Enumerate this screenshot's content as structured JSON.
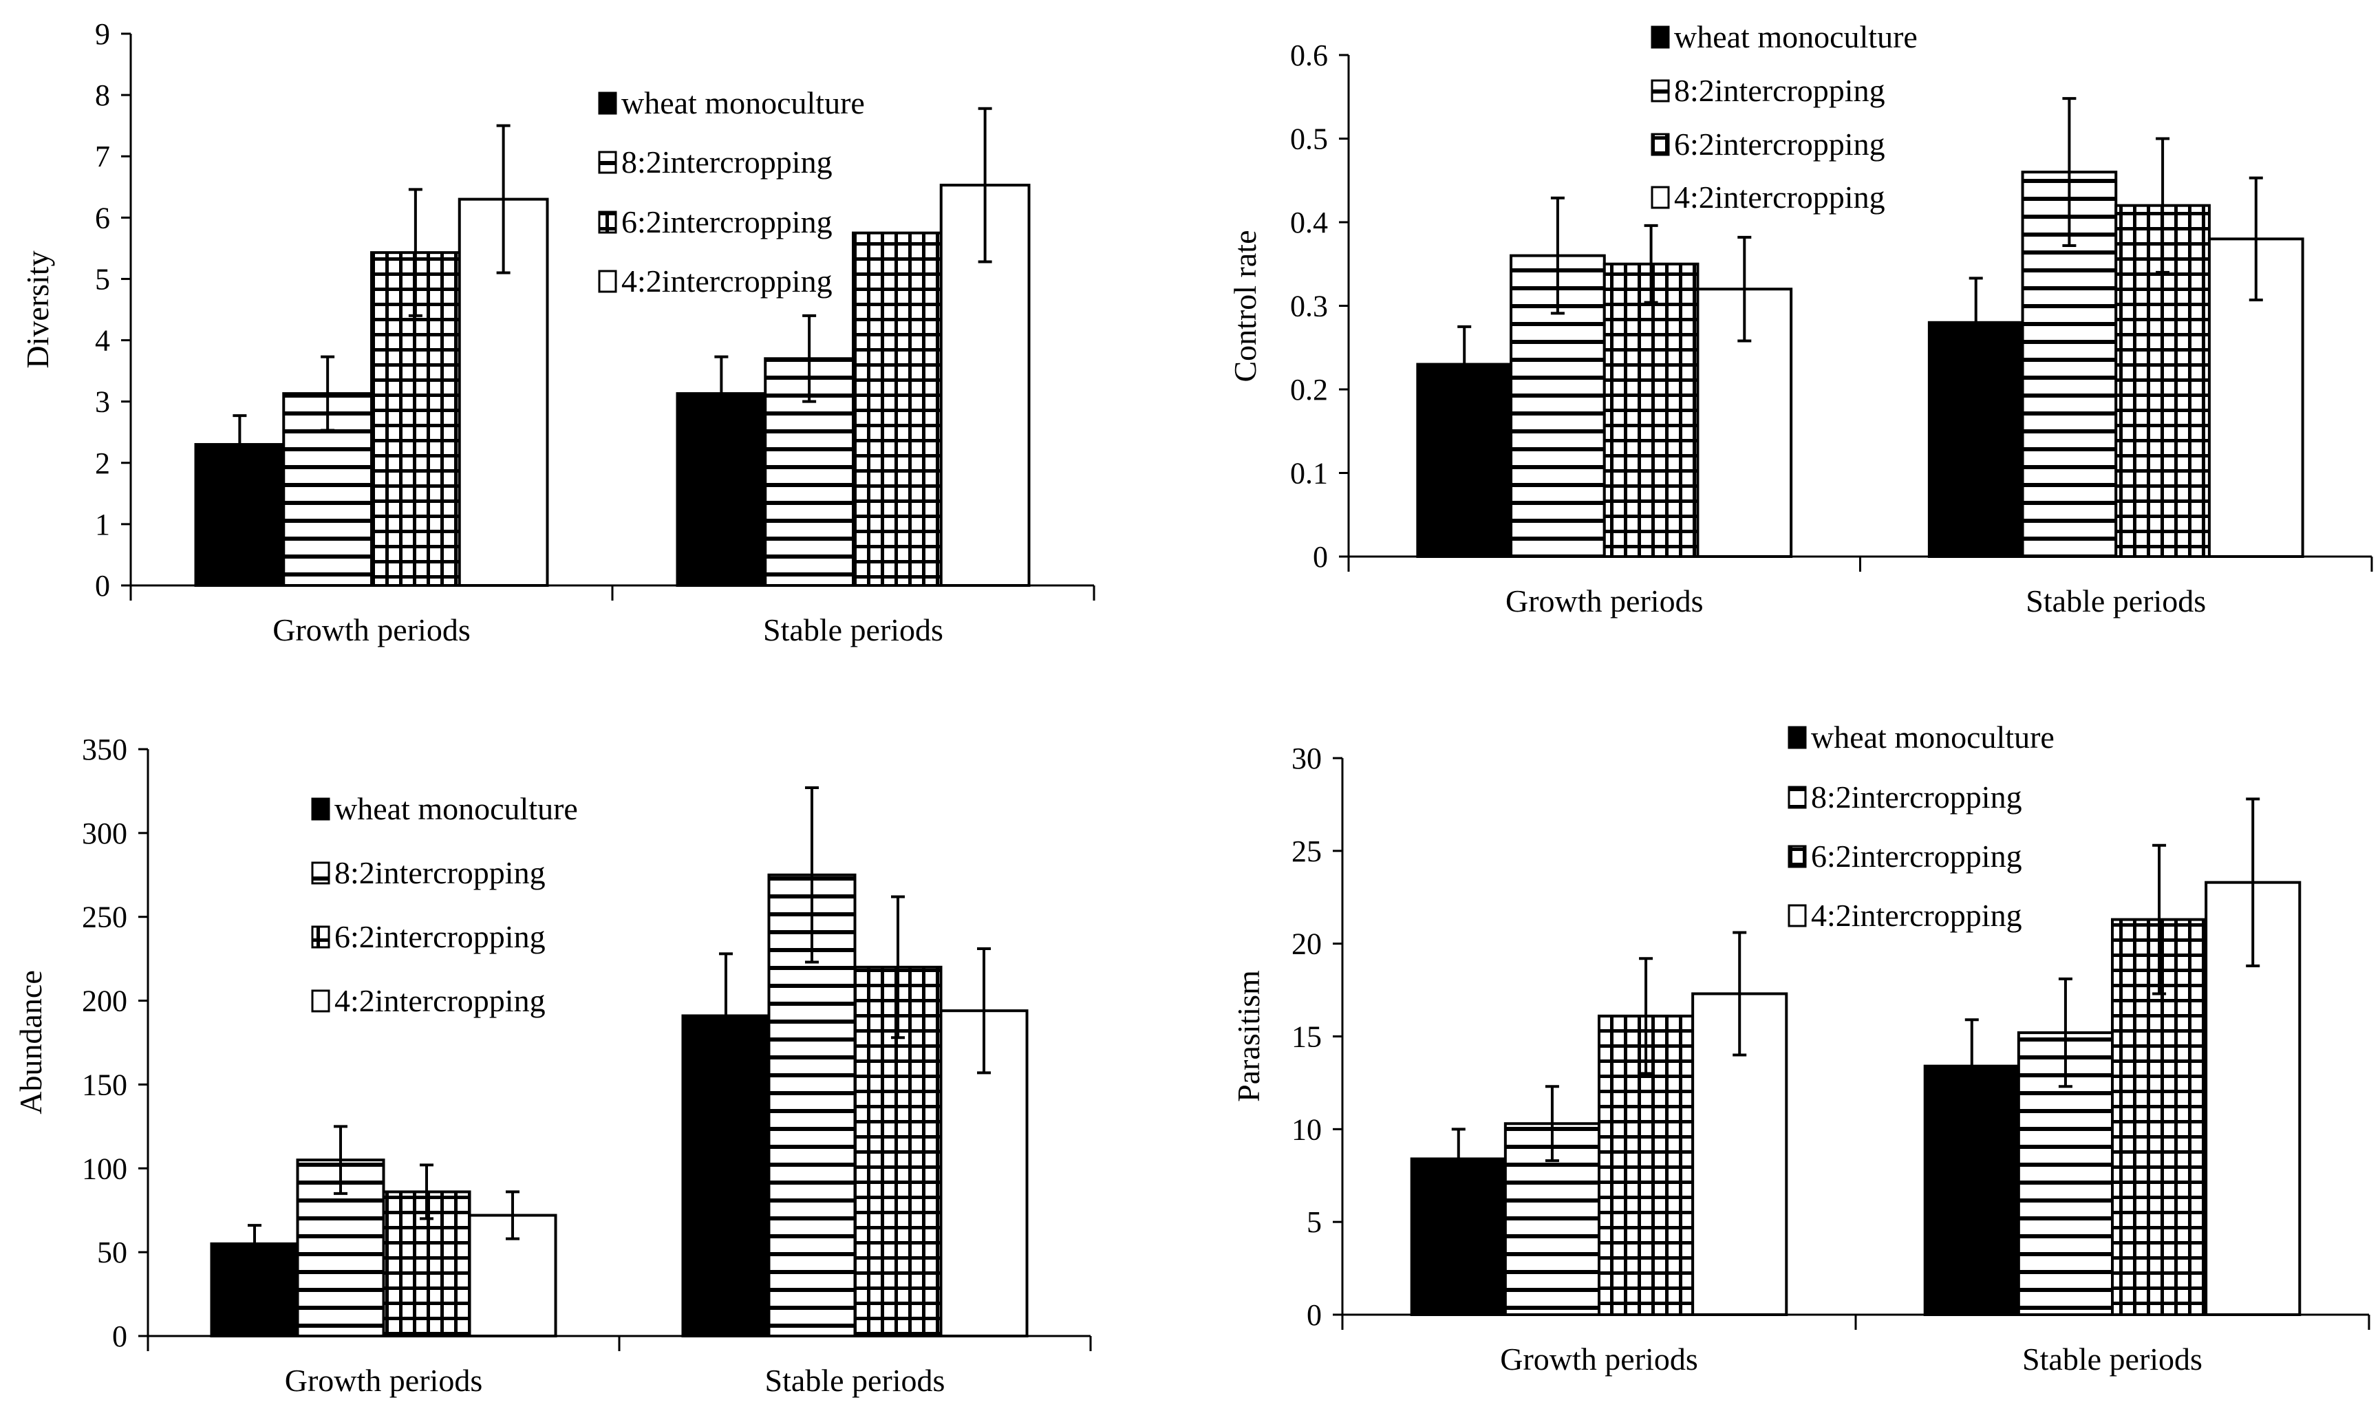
{
  "chart_data": [
    {
      "type": "bar",
      "ylabel": "Diversity",
      "categories": [
        "Growth periods",
        "Stable periods"
      ],
      "ylim": [
        0,
        9
      ],
      "yticks": [
        "0",
        "1",
        "2",
        "3",
        "4",
        "5",
        "6",
        "7",
        "8",
        "9"
      ],
      "ytick_values": [
        0,
        1,
        2,
        3,
        4,
        5,
        6,
        7,
        8,
        9
      ],
      "legend_position": "top-right",
      "series": [
        {
          "name": "wheat monoculture",
          "values": [
            2.3,
            3.13
          ],
          "errors": [
            0.47,
            0.6
          ]
        },
        {
          "name": "8:2intercropping",
          "values": [
            3.13,
            3.7
          ],
          "errors": [
            0.6,
            0.7
          ]
        },
        {
          "name": "6:2intercropping",
          "values": [
            5.43,
            5.75
          ],
          "errors": [
            1.03,
            0
          ]
        },
        {
          "name": "4:2intercropping",
          "values": [
            6.3,
            6.53
          ],
          "errors": [
            1.2,
            1.25
          ]
        }
      ]
    },
    {
      "type": "bar",
      "ylabel": "Control rate",
      "categories": [
        "Growth periods",
        "Stable periods"
      ],
      "ylim": [
        0,
        0.6
      ],
      "yticks": [
        "0",
        "0.1",
        "0.2",
        "0.3",
        "0.4",
        "0.5",
        "0.6"
      ],
      "ytick_values": [
        0,
        0.1,
        0.2,
        0.3,
        0.4,
        0.5,
        0.6
      ],
      "legend_position": "top-center",
      "series": [
        {
          "name": "wheat monoculture",
          "values": [
            0.23,
            0.28
          ],
          "errors": [
            0.045,
            0.053
          ]
        },
        {
          "name": "8:2intercropping",
          "values": [
            0.36,
            0.46
          ],
          "errors": [
            0.069,
            0.088
          ]
        },
        {
          "name": "6:2intercropping",
          "values": [
            0.35,
            0.42
          ],
          "errors": [
            0.046,
            0.08
          ]
        },
        {
          "name": "4:2intercropping",
          "values": [
            0.32,
            0.38
          ],
          "errors": [
            0.062,
            0.073
          ]
        }
      ]
    },
    {
      "type": "bar",
      "ylabel": "Abundance",
      "categories": [
        "Growth periods",
        "Stable periods"
      ],
      "ylim": [
        0,
        350
      ],
      "yticks": [
        "0",
        "50",
        "100",
        "150",
        "200",
        "250",
        "300",
        "350"
      ],
      "ytick_values": [
        0,
        50,
        100,
        150,
        200,
        250,
        300,
        350
      ],
      "legend_position": "top-left",
      "series": [
        {
          "name": "wheat monoculture",
          "values": [
            55,
            191
          ],
          "errors": [
            11,
            37
          ]
        },
        {
          "name": "8:2intercropping",
          "values": [
            105,
            275
          ],
          "errors": [
            20,
            52
          ]
        },
        {
          "name": "6:2intercropping",
          "values": [
            86,
            220
          ],
          "errors": [
            16,
            42
          ]
        },
        {
          "name": "4:2intercropping",
          "values": [
            72,
            194
          ],
          "errors": [
            14,
            37
          ]
        }
      ]
    },
    {
      "type": "bar",
      "ylabel": "Parasitism",
      "categories": [
        "Growth periods",
        "Stable periods"
      ],
      "ylim": [
        0,
        30
      ],
      "yticks": [
        "0",
        "5",
        "10",
        "15",
        "20",
        "25",
        "30"
      ],
      "ytick_values": [
        0,
        5,
        10,
        15,
        20,
        25,
        30
      ],
      "legend_position": "top-center",
      "series": [
        {
          "name": "wheat monoculture",
          "values": [
            8.4,
            13.4
          ],
          "errors": [
            1.6,
            2.5
          ]
        },
        {
          "name": "8:2intercropping",
          "values": [
            10.3,
            15.2
          ],
          "errors": [
            2.0,
            2.9
          ]
        },
        {
          "name": "6:2intercropping",
          "values": [
            16.1,
            21.3
          ],
          "errors": [
            3.1,
            4.0
          ]
        },
        {
          "name": "4:2intercropping",
          "values": [
            17.3,
            23.3
          ],
          "errors": [
            3.3,
            4.5
          ]
        }
      ]
    }
  ]
}
